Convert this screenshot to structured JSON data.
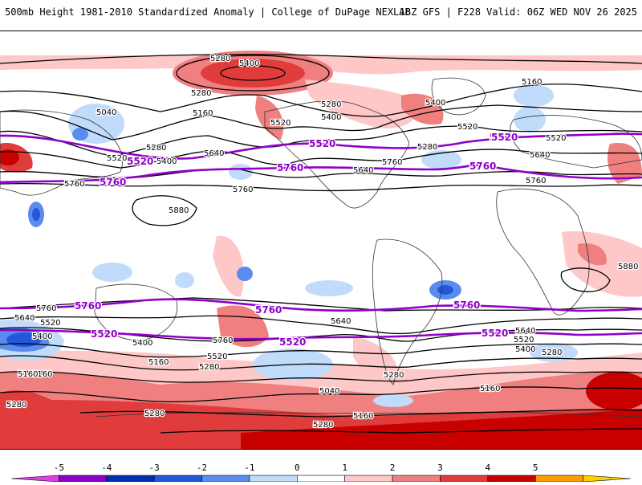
{
  "header": {
    "title": "500mb Height 1981-2010 Standardized Anomaly | College of DuPage NEXLAB",
    "run_info": "18Z GFS | F228 Valid: 06Z WED NOV 26 2025"
  },
  "map": {
    "contour_labels_black": [
      "5280",
      "5400",
      "5280",
      "5040",
      "5160",
      "5520",
      "5400",
      "5160",
      "5280",
      "5520",
      "5400",
      "5640",
      "5280",
      "5760",
      "5880",
      "5760",
      "5640",
      "5760",
      "5520",
      "5640",
      "5400",
      "5520",
      "5760",
      "5280",
      "5160",
      "5880",
      "5760",
      "5640",
      "5520",
      "5400",
      "5400",
      "5280",
      "5640",
      "5760",
      "5520",
      "5280",
      "5160",
      "5040",
      "5640",
      "5520",
      "5400",
      "5280",
      "5160",
      "5280",
      "5160",
      "5280",
      "5160",
      "5280"
    ],
    "contour_labels_purple": [
      "5520",
      "5760",
      "5520",
      "5760",
      "5760",
      "5760",
      "5520",
      "5760",
      "5520",
      "5760",
      "5520",
      "5760",
      "5520"
    ]
  },
  "legend": {
    "ticks": [
      "-5",
      "-4",
      "-3",
      "-2",
      "-1",
      "0",
      "1",
      "2",
      "3",
      "4",
      "5"
    ],
    "colors": [
      "#e040e0",
      "#8c00c8",
      "#0030b0",
      "#2458d8",
      "#5a8cf0",
      "#c0dcfa",
      "#ffffff",
      "#ffc8c8",
      "#f08080",
      "#e03c3c",
      "#c80000",
      "#ff9c00",
      "#ffd000"
    ]
  }
}
